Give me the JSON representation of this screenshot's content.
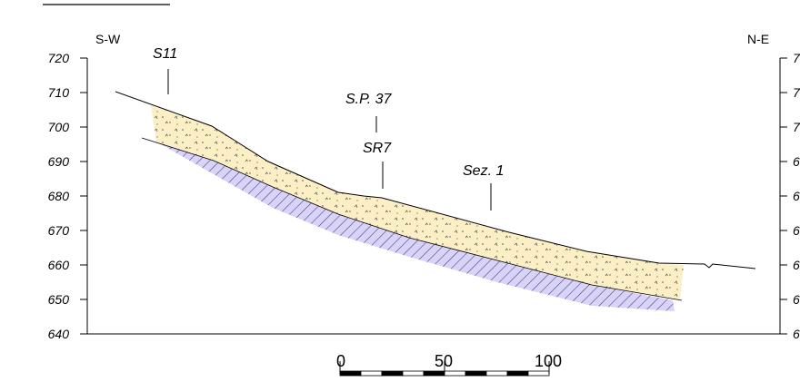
{
  "orientation": {
    "left": "S-W",
    "right": "N-E"
  },
  "elevation_axis": {
    "ticks": [
      "720",
      "710",
      "700",
      "690",
      "680",
      "670",
      "660",
      "650",
      "640"
    ],
    "right_ticks_visible": [
      "7",
      "7",
      "7",
      "6",
      "6",
      "6",
      "6",
      "6",
      "6"
    ]
  },
  "boreholes": [
    {
      "label": "S11"
    },
    {
      "label": "S.P. 37"
    },
    {
      "label": "SR7"
    },
    {
      "label": "Sez. 1"
    }
  ],
  "scale_bar": {
    "labels": [
      "0",
      "50",
      "100"
    ]
  },
  "colors": {
    "upper_layer_fill": "#fcefc6",
    "lower_layer_fill": "#d9d3f7",
    "hatch": "#3a3a80",
    "line": "#000000"
  }
}
